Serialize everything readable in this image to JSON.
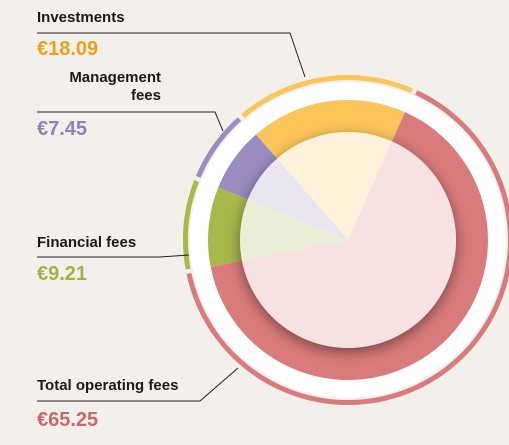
{
  "chart_data": {
    "type": "donut",
    "categories": [
      "Investments",
      "Management fees",
      "Financial fees",
      "Total operating fees"
    ],
    "values": [
      18.09,
      7.45,
      9.21,
      65.25
    ],
    "value_labels": [
      "€18.09",
      "€7.45",
      "€9.21",
      "€65.25"
    ],
    "colors": [
      "#fbc55a",
      "#9b8bc0",
      "#a9b84a",
      "#d97b7b"
    ],
    "label_colors": [
      "#e9a21f",
      "#8e82b8",
      "#a3b142",
      "#c96868"
    ]
  }
}
